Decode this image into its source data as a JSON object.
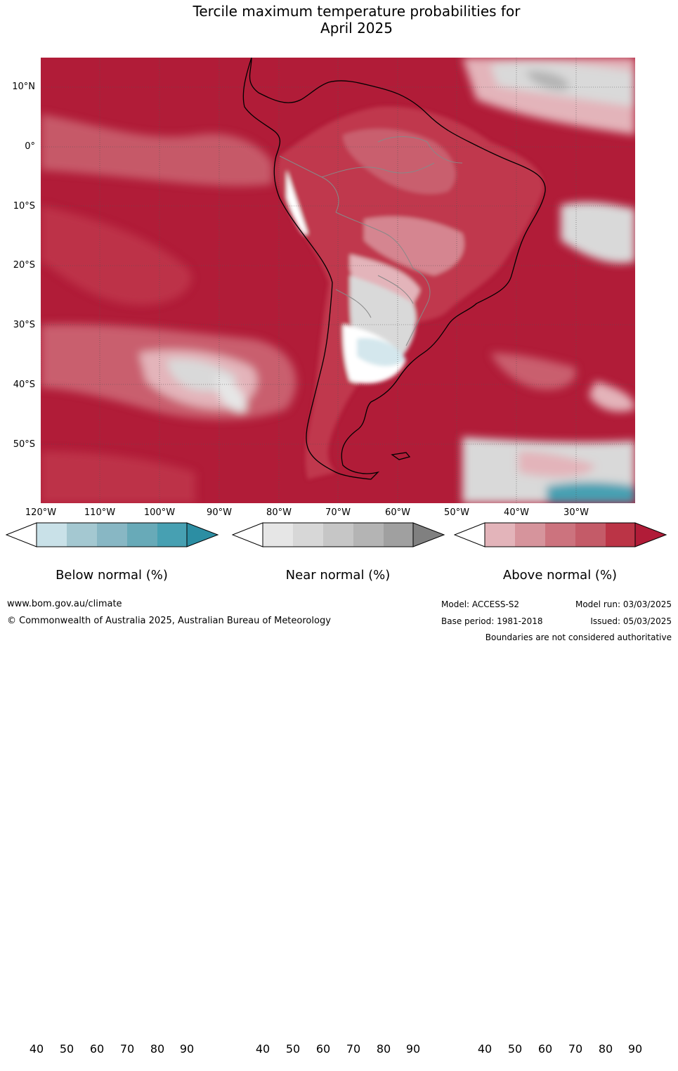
{
  "title_line1": "Tercile maximum temperature probabilities for",
  "title_line2": "April 2025",
  "map": {
    "latitude_labels": [
      "10°N",
      "0°",
      "10°S",
      "20°S",
      "30°S",
      "40°S",
      "50°S"
    ],
    "longitude_labels": [
      "120°W",
      "110°W",
      "100°W",
      "90°W",
      "80°W",
      "70°W",
      "60°W",
      "50°W",
      "40°W",
      "30°W"
    ],
    "colors": {
      "above_90": "#b11c38",
      "above_80": "#c0384e",
      "above_70": "#c95f6e",
      "above_60": "#d58590",
      "above_50": "#e3b4ba",
      "near_normal": "#d9d9d9",
      "below_normal": "#2c8ea3",
      "land_outline": "#000000",
      "country_border": "#888888"
    }
  },
  "legends": [
    {
      "title": "Below normal (%)",
      "ticks": [
        "40",
        "50",
        "60",
        "70",
        "80",
        "90"
      ],
      "colors": [
        "#ffffff",
        "#c9e1e8",
        "#a4c8d1",
        "#88b7c4",
        "#68aab8",
        "#47a0b2",
        "#2c8ea3"
      ]
    },
    {
      "title": "Near normal (%)",
      "ticks": [
        "40",
        "50",
        "60",
        "70",
        "80",
        "90"
      ],
      "colors": [
        "#ffffff",
        "#e6e6e6",
        "#d7d7d7",
        "#c6c6c6",
        "#b4b4b4",
        "#a0a0a0",
        "#808080"
      ]
    },
    {
      "title": "Above normal (%)",
      "ticks": [
        "40",
        "50",
        "60",
        "70",
        "80",
        "90"
      ],
      "colors": [
        "#ffffff",
        "#e3b4ba",
        "#d6949c",
        "#cc737e",
        "#c45b68",
        "#bb3446",
        "#b11c38"
      ]
    }
  ],
  "footer": {
    "website": "www.bom.gov.au/climate",
    "copyright": "© Commonwealth of Australia 2025, Australian Bureau of Meteorology",
    "model": "Model: ACCESS-S2",
    "model_run": "Model run: 03/03/2025",
    "base_period": "Base period: 1981-2018",
    "issued": "Issued: 05/03/2025",
    "boundaries_note": "Boundaries are not considered authoritative"
  }
}
